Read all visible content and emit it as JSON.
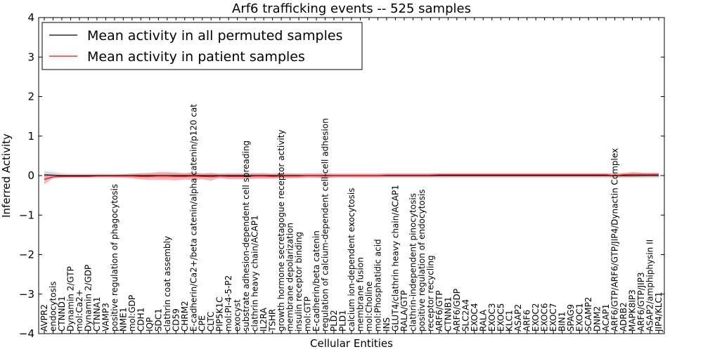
{
  "chart_data": {
    "type": "line",
    "title": "Arf6 trafficking events -- 525 samples",
    "xlabel": "Cellular Entities",
    "ylabel": "Inferred Activity",
    "ylim": [
      -4,
      4
    ],
    "yticks": [
      -4,
      -3,
      -2,
      -1,
      0,
      1,
      2,
      3,
      4
    ],
    "ytick_labels": [
      "−4",
      "−3",
      "−2",
      "−1",
      "0",
      "1",
      "2",
      "3",
      "4"
    ],
    "legend_position": "top-left",
    "categories": [
      "AVPR2",
      "endocytosis",
      "CTNND1",
      "Dynamin 2/GTP",
      "mol:Ca2+",
      "Dynamin 2/GDP",
      "CTNNA1",
      "VAMP3",
      "positive regulation of phagocytosis",
      "NME1",
      "mol:GDP",
      "CDH1",
      "IQP",
      "SDC1",
      "clathrin coat assembly",
      "CD59",
      "CHRM2",
      "E-cadherin/Ca2+/beta catenin/alpha catenin/p120 cat",
      "CPE",
      "CLTC",
      "PIP5K1C",
      "mol:PI-4-5-P2",
      "exocyst",
      "substrate adhesion-dependent cell spreading",
      "clathrin heavy chain/ACAP1",
      "IL2RA",
      "TSHR",
      "growth hormone secretagogue receptor activity",
      "membrane depolarization",
      "insulin receptor binding",
      "mol:GTP",
      "E-cadherin/beta catenin",
      "regulation of calcium-dependent cell-cell adhesion",
      "PLD2",
      "PLD1",
      "calcium ion-dependent exocytosis",
      "membrane fusion",
      "mol:Choline",
      "mol:Phosphatidic acid",
      "INS",
      "GLUT4/clathrin heavy chain/ACAP1",
      "RALA/GTP",
      "clathrin-independent pinocytosis",
      "positive regulation of endocytosis",
      "receptor recycling",
      "ARF6/GTP",
      "CTNNB1",
      "ARF6/GDP",
      "SLC2A4",
      "EXOC4",
      "RALA",
      "EXOC3",
      "EXOC5",
      "KLC1",
      "ASAP2",
      "ARF6",
      "EXOC2",
      "EXOC6",
      "EXOC7",
      "BIN1",
      "SPAG9",
      "EXOC1",
      "SCAMP2",
      "DNM2",
      "ACAP1",
      "ARF6/GTP/ARF6/GTP/JIP4/Dynactin Complex",
      "ADRB2",
      "MAPK8IP3",
      "ARF6/GTP/JIP3",
      "ASAP2/amphiphysin II",
      "JIP4/KLC1"
    ],
    "series": [
      {
        "name": "Mean activity in all permuted samples",
        "color": "#000000",
        "values": [
          0.02,
          0.01,
          0.0,
          0.0,
          0.0,
          0.0,
          0.0,
          0.0,
          0.0,
          0.0,
          0.0,
          0.0,
          0.0,
          0.0,
          0.0,
          0.0,
          0.0,
          0.0,
          0.0,
          0.0,
          0.0,
          0.0,
          0.0,
          0.0,
          0.0,
          0.0,
          0.0,
          0.0,
          0.0,
          0.0,
          0.0,
          0.0,
          0.0,
          0.0,
          0.0,
          0.0,
          0.0,
          0.0,
          0.0,
          0.0,
          0.0,
          0.0,
          0.0,
          0.0,
          0.0,
          0.0,
          0.0,
          0.0,
          0.0,
          0.0,
          0.0,
          0.0,
          0.0,
          0.0,
          0.0,
          0.0,
          0.0,
          0.0,
          0.0,
          0.0,
          0.0,
          0.0,
          0.0,
          0.0,
          0.0,
          0.0,
          0.0,
          0.0,
          0.0,
          0.0,
          0.0
        ],
        "band": [
          0.1,
          0.08,
          0.06,
          0.05,
          0.05,
          0.05,
          0.05,
          0.05,
          0.05,
          0.05,
          0.05,
          0.06,
          0.06,
          0.06,
          0.06,
          0.06,
          0.06,
          0.06,
          0.06,
          0.06,
          0.06,
          0.06,
          0.06,
          0.06,
          0.06,
          0.06,
          0.06,
          0.06,
          0.06,
          0.06,
          0.06,
          0.06,
          0.06,
          0.06,
          0.06,
          0.06,
          0.06,
          0.06,
          0.06,
          0.06,
          0.06,
          0.06,
          0.06,
          0.06,
          0.06,
          0.06,
          0.06,
          0.06,
          0.06,
          0.06,
          0.06,
          0.06,
          0.06,
          0.06,
          0.06,
          0.06,
          0.06,
          0.06,
          0.06,
          0.06,
          0.06,
          0.06,
          0.06,
          0.06,
          0.06,
          0.06,
          0.06,
          0.06,
          0.06,
          0.06,
          0.06
        ]
      },
      {
        "name": "Mean activity in patient samples",
        "color": "#ff0000",
        "values": [
          -0.1,
          -0.03,
          -0.02,
          -0.02,
          -0.02,
          -0.02,
          -0.01,
          -0.01,
          -0.01,
          -0.01,
          -0.01,
          -0.02,
          -0.02,
          -0.01,
          -0.01,
          -0.02,
          -0.02,
          -0.01,
          -0.02,
          -0.03,
          -0.01,
          -0.02,
          -0.02,
          -0.02,
          -0.01,
          -0.01,
          -0.02,
          -0.01,
          -0.01,
          -0.01,
          0.0,
          0.0,
          -0.01,
          0.0,
          0.0,
          0.0,
          0.0,
          0.0,
          0.0,
          0.01,
          0.01,
          0.01,
          0.01,
          0.01,
          0.01,
          0.02,
          0.02,
          0.02,
          0.02,
          0.02,
          0.02,
          0.02,
          0.02,
          0.02,
          0.02,
          0.02,
          0.02,
          0.02,
          0.02,
          0.02,
          0.02,
          0.02,
          0.02,
          0.02,
          0.02,
          0.0,
          0.02,
          0.03,
          0.03,
          0.03,
          0.03
        ],
        "band": [
          0.12,
          0.04,
          0.03,
          0.03,
          0.03,
          0.03,
          0.03,
          0.03,
          0.03,
          0.04,
          0.06,
          0.08,
          0.09,
          0.1,
          0.1,
          0.1,
          0.08,
          0.1,
          0.07,
          0.1,
          0.05,
          0.07,
          0.07,
          0.07,
          0.07,
          0.07,
          0.06,
          0.06,
          0.06,
          0.05,
          0.05,
          0.05,
          0.06,
          0.04,
          0.04,
          0.04,
          0.04,
          0.04,
          0.04,
          0.04,
          0.04,
          0.04,
          0.04,
          0.04,
          0.04,
          0.04,
          0.04,
          0.04,
          0.04,
          0.04,
          0.04,
          0.04,
          0.04,
          0.04,
          0.04,
          0.04,
          0.04,
          0.04,
          0.04,
          0.04,
          0.04,
          0.04,
          0.04,
          0.04,
          0.04,
          0.04,
          0.05,
          0.06,
          0.05,
          0.04,
          0.04
        ]
      }
    ]
  }
}
